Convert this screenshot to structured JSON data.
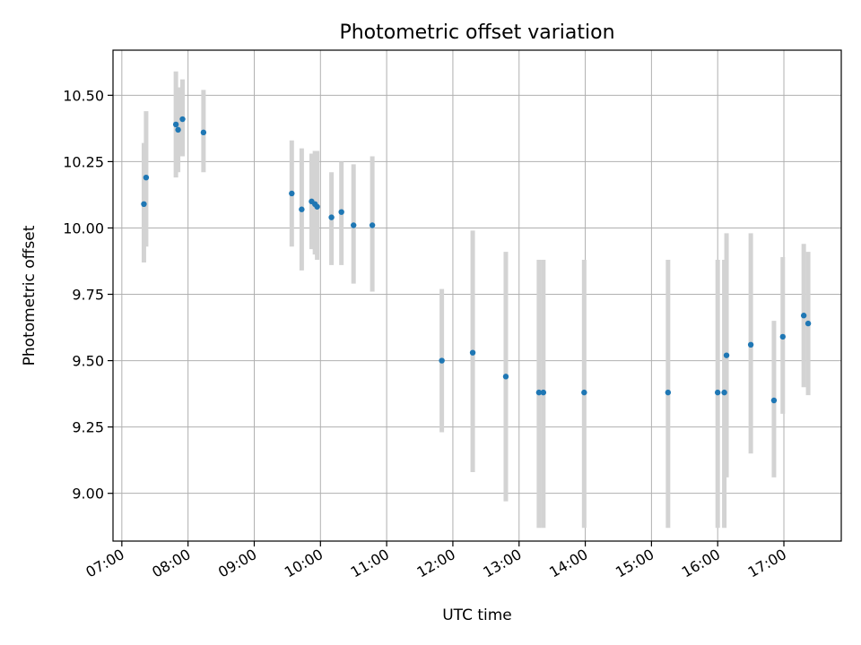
{
  "chart_data": {
    "type": "scatter",
    "title": "Photometric offset variation",
    "xlabel": "UTC time",
    "ylabel": "Photometric offset",
    "xlim": [
      "06:52",
      "17:52"
    ],
    "ylim": [
      8.82,
      10.67
    ],
    "grid": true,
    "x_ticks": [
      "07:00",
      "08:00",
      "09:00",
      "10:00",
      "11:00",
      "12:00",
      "13:00",
      "14:00",
      "15:00",
      "16:00",
      "17:00"
    ],
    "y_ticks": [
      9.0,
      9.25,
      9.5,
      9.75,
      10.0,
      10.25,
      10.5
    ],
    "y_tick_labels": [
      "9.00",
      "9.25",
      "9.50",
      "9.75",
      "10.00",
      "10.25",
      "10.50"
    ],
    "marker_color": "#1f77b4",
    "errorbar_color": "#d3d3d3",
    "points": [
      {
        "x": "07:20",
        "y": 10.09,
        "ylo": 9.87,
        "yhi": 10.32
      },
      {
        "x": "07:22",
        "y": 10.19,
        "ylo": 9.93,
        "yhi": 10.44
      },
      {
        "x": "07:49",
        "y": 10.39,
        "ylo": 10.19,
        "yhi": 10.59
      },
      {
        "x": "07:51",
        "y": 10.37,
        "ylo": 10.21,
        "yhi": 10.53
      },
      {
        "x": "07:55",
        "y": 10.41,
        "ylo": 10.27,
        "yhi": 10.56
      },
      {
        "x": "08:14",
        "y": 10.36,
        "ylo": 10.21,
        "yhi": 10.52
      },
      {
        "x": "09:34",
        "y": 10.13,
        "ylo": 9.93,
        "yhi": 10.33
      },
      {
        "x": "09:43",
        "y": 10.07,
        "ylo": 9.84,
        "yhi": 10.3
      },
      {
        "x": "09:52",
        "y": 10.1,
        "ylo": 9.92,
        "yhi": 10.28
      },
      {
        "x": "09:55",
        "y": 10.09,
        "ylo": 9.9,
        "yhi": 10.29
      },
      {
        "x": "09:57",
        "y": 10.08,
        "ylo": 9.88,
        "yhi": 10.29
      },
      {
        "x": "10:10",
        "y": 10.04,
        "ylo": 9.86,
        "yhi": 10.21
      },
      {
        "x": "10:19",
        "y": 10.06,
        "ylo": 9.86,
        "yhi": 10.25
      },
      {
        "x": "10:30",
        "y": 10.01,
        "ylo": 9.79,
        "yhi": 10.24
      },
      {
        "x": "10:47",
        "y": 10.01,
        "ylo": 9.76,
        "yhi": 10.27
      },
      {
        "x": "11:50",
        "y": 9.5,
        "ylo": 9.23,
        "yhi": 9.77
      },
      {
        "x": "12:18",
        "y": 9.53,
        "ylo": 9.08,
        "yhi": 9.99
      },
      {
        "x": "12:48",
        "y": 9.44,
        "ylo": 8.97,
        "yhi": 9.91
      },
      {
        "x": "13:18",
        "y": 9.38,
        "ylo": 8.87,
        "yhi": 9.88
      },
      {
        "x": "13:22",
        "y": 9.38,
        "ylo": 8.87,
        "yhi": 9.88
      },
      {
        "x": "13:59",
        "y": 9.38,
        "ylo": 8.87,
        "yhi": 9.88
      },
      {
        "x": "15:15",
        "y": 9.38,
        "ylo": 8.87,
        "yhi": 9.88
      },
      {
        "x": "16:00",
        "y": 9.38,
        "ylo": 8.87,
        "yhi": 9.88
      },
      {
        "x": "16:06",
        "y": 9.38,
        "ylo": 8.87,
        "yhi": 9.88
      },
      {
        "x": "16:08",
        "y": 9.52,
        "ylo": 9.06,
        "yhi": 9.98
      },
      {
        "x": "16:30",
        "y": 9.56,
        "ylo": 9.15,
        "yhi": 9.98
      },
      {
        "x": "16:51",
        "y": 9.35,
        "ylo": 9.06,
        "yhi": 9.65
      },
      {
        "x": "16:59",
        "y": 9.59,
        "ylo": 9.3,
        "yhi": 9.89
      },
      {
        "x": "17:18",
        "y": 9.67,
        "ylo": 9.4,
        "yhi": 9.94
      },
      {
        "x": "17:22",
        "y": 9.64,
        "ylo": 9.37,
        "yhi": 9.91
      }
    ]
  }
}
